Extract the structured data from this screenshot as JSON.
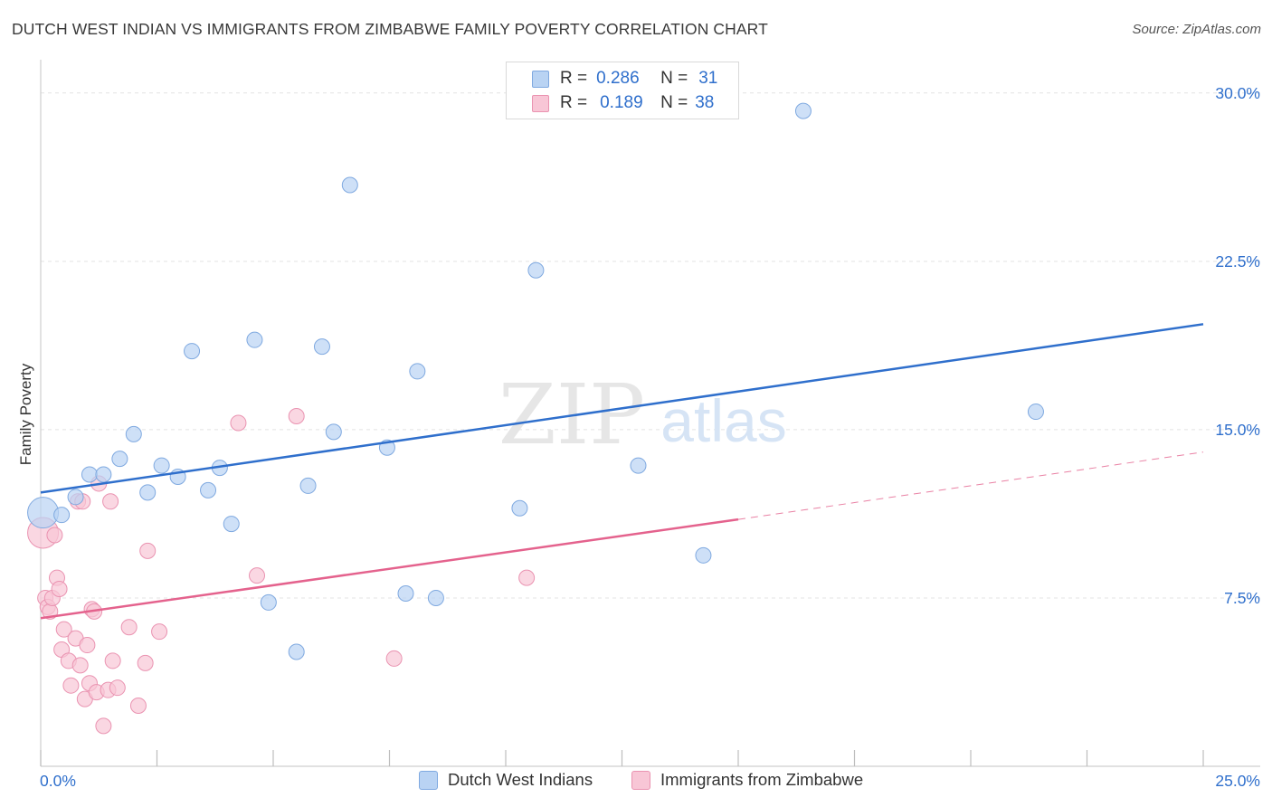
{
  "header": {
    "title": "DUTCH WEST INDIAN VS IMMIGRANTS FROM ZIMBABWE FAMILY POVERTY CORRELATION CHART",
    "source": "Source: ZipAtlas.com"
  },
  "watermark": {
    "zip": "ZIP",
    "atlas": "atlas"
  },
  "legend_top": [
    {
      "r_label": "R =",
      "r_value": "0.286",
      "n_label": "N =",
      "n_value": "31"
    },
    {
      "r_label": "R =",
      "r_value": "0.189",
      "n_label": "N =",
      "n_value": "38"
    }
  ],
  "colors": {
    "blue_fill": "#b9d3f3",
    "blue_stroke": "#7fa9e0",
    "blue_line": "#2f6fcc",
    "pink_fill": "#f8c6d6",
    "pink_stroke": "#ea93b1",
    "pink_line": "#e4628d",
    "tick_label": "#2f6fcc",
    "grid": "#e3e3e3"
  },
  "chart_data": {
    "type": "scatter",
    "title": "DUTCH WEST INDIAN VS IMMIGRANTS FROM ZIMBABWE FAMILY POVERTY CORRELATION CHART",
    "xlabel": "",
    "ylabel": "Family Poverty",
    "xlim": [
      0,
      25
    ],
    "ylim": [
      0,
      31
    ],
    "x_tick_labels": [
      "0.0%",
      "25.0%"
    ],
    "y_ticks": [
      7.5,
      15.0,
      22.5,
      30.0
    ],
    "y_tick_labels": [
      "7.5%",
      "15.0%",
      "22.5%",
      "30.0%"
    ],
    "grid": true,
    "legend_position": "bottom",
    "series": [
      {
        "name": "Dutch West Indians",
        "color": "#b9d3f3",
        "points": [
          {
            "x": 0.05,
            "y": 11.3
          },
          {
            "x": 0.45,
            "y": 11.2
          },
          {
            "x": 0.75,
            "y": 12.0
          },
          {
            "x": 1.05,
            "y": 13.0
          },
          {
            "x": 1.35,
            "y": 13.0
          },
          {
            "x": 1.7,
            "y": 13.7
          },
          {
            "x": 2.0,
            "y": 14.8
          },
          {
            "x": 2.3,
            "y": 12.2
          },
          {
            "x": 2.6,
            "y": 13.4
          },
          {
            "x": 2.95,
            "y": 12.9
          },
          {
            "x": 3.25,
            "y": 18.5
          },
          {
            "x": 3.6,
            "y": 12.3
          },
          {
            "x": 3.85,
            "y": 13.3
          },
          {
            "x": 4.1,
            "y": 10.8
          },
          {
            "x": 4.6,
            "y": 19.0
          },
          {
            "x": 4.9,
            "y": 7.3
          },
          {
            "x": 5.5,
            "y": 5.1
          },
          {
            "x": 5.75,
            "y": 12.5
          },
          {
            "x": 6.05,
            "y": 18.7
          },
          {
            "x": 6.3,
            "y": 14.9
          },
          {
            "x": 6.65,
            "y": 25.9
          },
          {
            "x": 7.45,
            "y": 14.2
          },
          {
            "x": 7.85,
            "y": 7.7
          },
          {
            "x": 8.1,
            "y": 17.6
          },
          {
            "x": 8.5,
            "y": 7.5
          },
          {
            "x": 10.3,
            "y": 11.5
          },
          {
            "x": 10.65,
            "y": 22.1
          },
          {
            "x": 12.85,
            "y": 13.4
          },
          {
            "x": 14.25,
            "y": 9.4
          },
          {
            "x": 16.4,
            "y": 29.2
          },
          {
            "x": 21.4,
            "y": 15.8
          }
        ]
      },
      {
        "name": "Immigrants from Zimbabwe",
        "color": "#f8c6d6",
        "points": [
          {
            "x": 0.05,
            "y": 10.4
          },
          {
            "x": 0.1,
            "y": 7.5
          },
          {
            "x": 0.15,
            "y": 7.1
          },
          {
            "x": 0.2,
            "y": 6.9
          },
          {
            "x": 0.25,
            "y": 7.5
          },
          {
            "x": 0.3,
            "y": 10.3
          },
          {
            "x": 0.35,
            "y": 8.4
          },
          {
            "x": 0.4,
            "y": 7.9
          },
          {
            "x": 0.45,
            "y": 5.2
          },
          {
            "x": 0.5,
            "y": 6.1
          },
          {
            "x": 0.6,
            "y": 4.7
          },
          {
            "x": 0.65,
            "y": 3.6
          },
          {
            "x": 0.75,
            "y": 5.7
          },
          {
            "x": 0.8,
            "y": 11.8
          },
          {
            "x": 0.85,
            "y": 4.5
          },
          {
            "x": 0.9,
            "y": 11.8
          },
          {
            "x": 0.95,
            "y": 3.0
          },
          {
            "x": 1.0,
            "y": 5.4
          },
          {
            "x": 1.05,
            "y": 3.7
          },
          {
            "x": 1.1,
            "y": 7.0
          },
          {
            "x": 1.15,
            "y": 6.9
          },
          {
            "x": 1.2,
            "y": 3.3
          },
          {
            "x": 1.25,
            "y": 12.6
          },
          {
            "x": 1.35,
            "y": 1.8
          },
          {
            "x": 1.45,
            "y": 3.4
          },
          {
            "x": 1.5,
            "y": 11.8
          },
          {
            "x": 1.55,
            "y": 4.7
          },
          {
            "x": 1.65,
            "y": 3.5
          },
          {
            "x": 1.9,
            "y": 6.2
          },
          {
            "x": 2.1,
            "y": 2.7
          },
          {
            "x": 2.25,
            "y": 4.6
          },
          {
            "x": 2.3,
            "y": 9.6
          },
          {
            "x": 2.55,
            "y": 6.0
          },
          {
            "x": 4.25,
            "y": 15.3
          },
          {
            "x": 4.65,
            "y": 8.5
          },
          {
            "x": 5.5,
            "y": 15.6
          },
          {
            "x": 7.6,
            "y": 4.8
          },
          {
            "x": 10.45,
            "y": 8.4
          }
        ]
      }
    ],
    "trendlines": [
      {
        "series": "Dutch West Indians",
        "x": [
          0,
          25
        ],
        "y": [
          12.2,
          19.7
        ],
        "style": "solid"
      },
      {
        "series": "Immigrants from Zimbabwe",
        "x": [
          0,
          15
        ],
        "y": [
          6.6,
          11.0
        ],
        "style": "solid"
      },
      {
        "series": "Immigrants from Zimbabwe",
        "x": [
          15,
          25
        ],
        "y": [
          11.0,
          14.0
        ],
        "style": "dashed"
      }
    ]
  },
  "legend_bottom": [
    {
      "label": "Dutch West Indians"
    },
    {
      "label": "Immigrants from Zimbabwe"
    }
  ]
}
